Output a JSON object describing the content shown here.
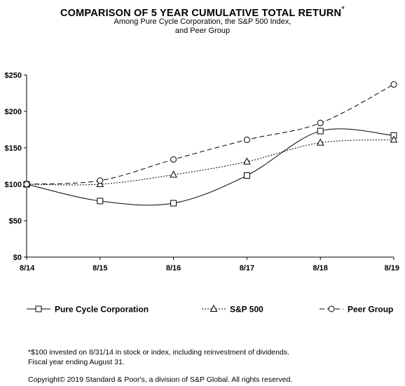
{
  "chart_data": {
    "type": "line",
    "title": "COMPARISON OF 5 YEAR CUMULATIVE TOTAL RETURN",
    "title_mark": "*",
    "subtitle_lines": [
      "Among Pure Cycle Corporation, the S&P 500 Index,",
      "and Peer Group"
    ],
    "categories": [
      "8/14",
      "8/15",
      "8/16",
      "8/17",
      "8/18",
      "8/19"
    ],
    "y_ticks": [
      "$0",
      "$50",
      "$100",
      "$150",
      "$200",
      "$250"
    ],
    "ylim": [
      0,
      250
    ],
    "grid": false,
    "legend_position": "bottom",
    "series": [
      {
        "name": "Pure Cycle Corporation",
        "values": [
          100,
          77,
          74,
          112,
          173,
          167
        ],
        "marker": "square",
        "dash": "solid"
      },
      {
        "name": "S&P 500",
        "values": [
          100,
          100,
          113,
          131,
          157,
          161
        ],
        "marker": "triangle",
        "dash": "dotted"
      },
      {
        "name": "Peer Group",
        "values": [
          100,
          105,
          134,
          161,
          184,
          237
        ],
        "marker": "circle",
        "dash": "dashed"
      }
    ]
  },
  "footnotes": [
    "*$100 invested on 8/31/14 in stock or index, including reinvestment of dividends.",
    "Fiscal year ending August 31.",
    "Copyright© 2019 Standard & Poor's, a division of S&P Global.  All rights reserved."
  ]
}
